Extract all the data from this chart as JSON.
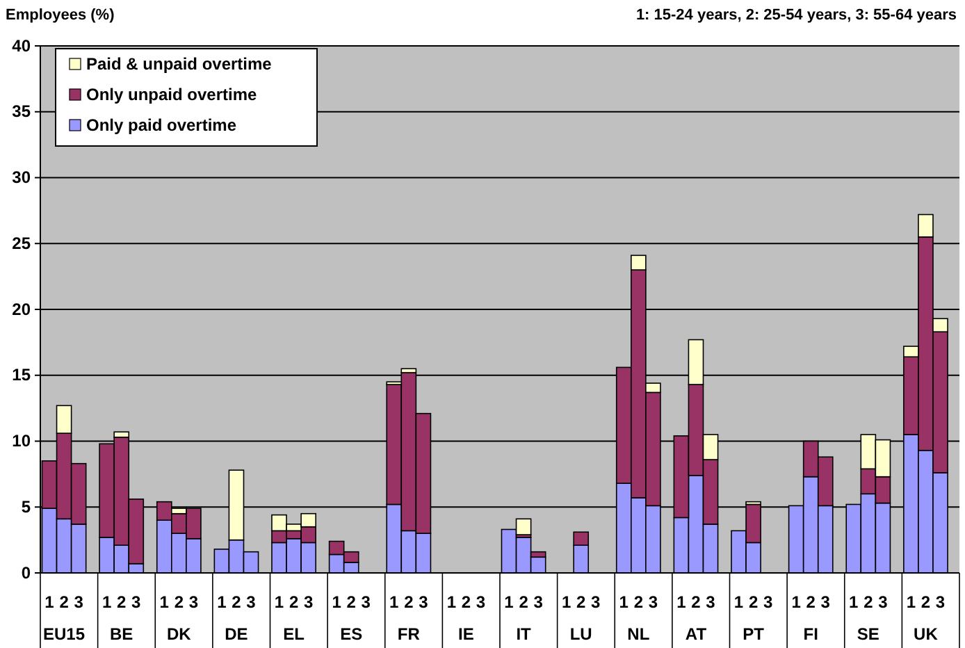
{
  "chart_data": {
    "type": "bar",
    "stacked": true,
    "ylabel": "Employees (%)",
    "subtitle": "1: 15-24 years, 2: 25-54 years, 3: 55-64 years",
    "categories": [
      "1",
      "2",
      "3",
      "1",
      "2",
      "3",
      "1",
      "2",
      "3",
      "1",
      "2",
      "3",
      "1",
      "2",
      "3",
      "1",
      "2",
      "3",
      "1",
      "2",
      "3",
      "1",
      "2",
      "3",
      "1",
      "2",
      "3",
      "1",
      "2",
      "3",
      "1",
      "2",
      "3",
      "1",
      "2",
      "3",
      "1",
      "2",
      "3",
      "1",
      "2",
      "3",
      "1",
      "2",
      "3",
      "1",
      "2",
      "3"
    ],
    "annotations": [
      "EU15",
      "BE",
      "DK",
      "DE",
      "EL",
      "ES",
      "FR",
      "IE",
      "IT",
      "LU",
      "NL",
      "AT",
      "PT",
      "FI",
      "SE",
      "UK"
    ],
    "series": [
      {
        "name": "Only paid overtime",
        "color": "#9999ff",
        "values": [
          4.9,
          4.1,
          3.7,
          2.7,
          2.1,
          0.7,
          4.0,
          3.0,
          2.6,
          1.8,
          2.5,
          1.6,
          2.3,
          2.6,
          2.3,
          1.4,
          0.8,
          0,
          5.2,
          3.2,
          3.0,
          0,
          0,
          0,
          3.3,
          2.7,
          1.2,
          0,
          2.1,
          0,
          6.8,
          5.7,
          5.1,
          4.2,
          7.4,
          3.7,
          3.2,
          2.3,
          0,
          5.1,
          7.3,
          5.1,
          5.2,
          6.0,
          5.3,
          10.5,
          9.3,
          7.6
        ]
      },
      {
        "name": "Only unpaid overtime",
        "color": "#993366",
        "values": [
          3.6,
          6.5,
          4.6,
          7.1,
          8.2,
          4.9,
          1.4,
          1.5,
          2.3,
          0,
          0,
          0,
          0.9,
          0.6,
          1.2,
          1.0,
          0.8,
          0,
          9.1,
          12.0,
          9.1,
          0,
          0,
          0,
          0,
          0.2,
          0.4,
          0,
          1.0,
          0,
          8.8,
          17.3,
          8.6,
          6.2,
          6.9,
          4.9,
          0,
          2.9,
          0,
          0,
          2.7,
          3.7,
          0,
          1.9,
          2.0,
          5.9,
          16.2,
          10.7
        ]
      },
      {
        "name": "Paid & unpaid overtime",
        "color": "#ffffcc",
        "values": [
          0,
          2.1,
          0,
          0,
          0.4,
          0,
          0,
          0.4,
          0,
          0,
          5.3,
          0,
          1.2,
          0.5,
          1.0,
          0,
          0,
          0,
          0.2,
          0.3,
          0,
          0,
          0,
          0,
          0,
          1.2,
          0,
          0,
          0,
          0,
          0,
          1.1,
          0.7,
          0,
          3.4,
          1.9,
          0,
          0.2,
          0,
          0,
          0,
          0,
          0,
          2.6,
          2.8,
          0.8,
          1.7,
          1.0
        ]
      }
    ],
    "ylim": [
      0,
      40
    ],
    "yticks": [
      0,
      5,
      10,
      15,
      20,
      25,
      30,
      35,
      40
    ],
    "grid": "y",
    "legend": "top left"
  }
}
